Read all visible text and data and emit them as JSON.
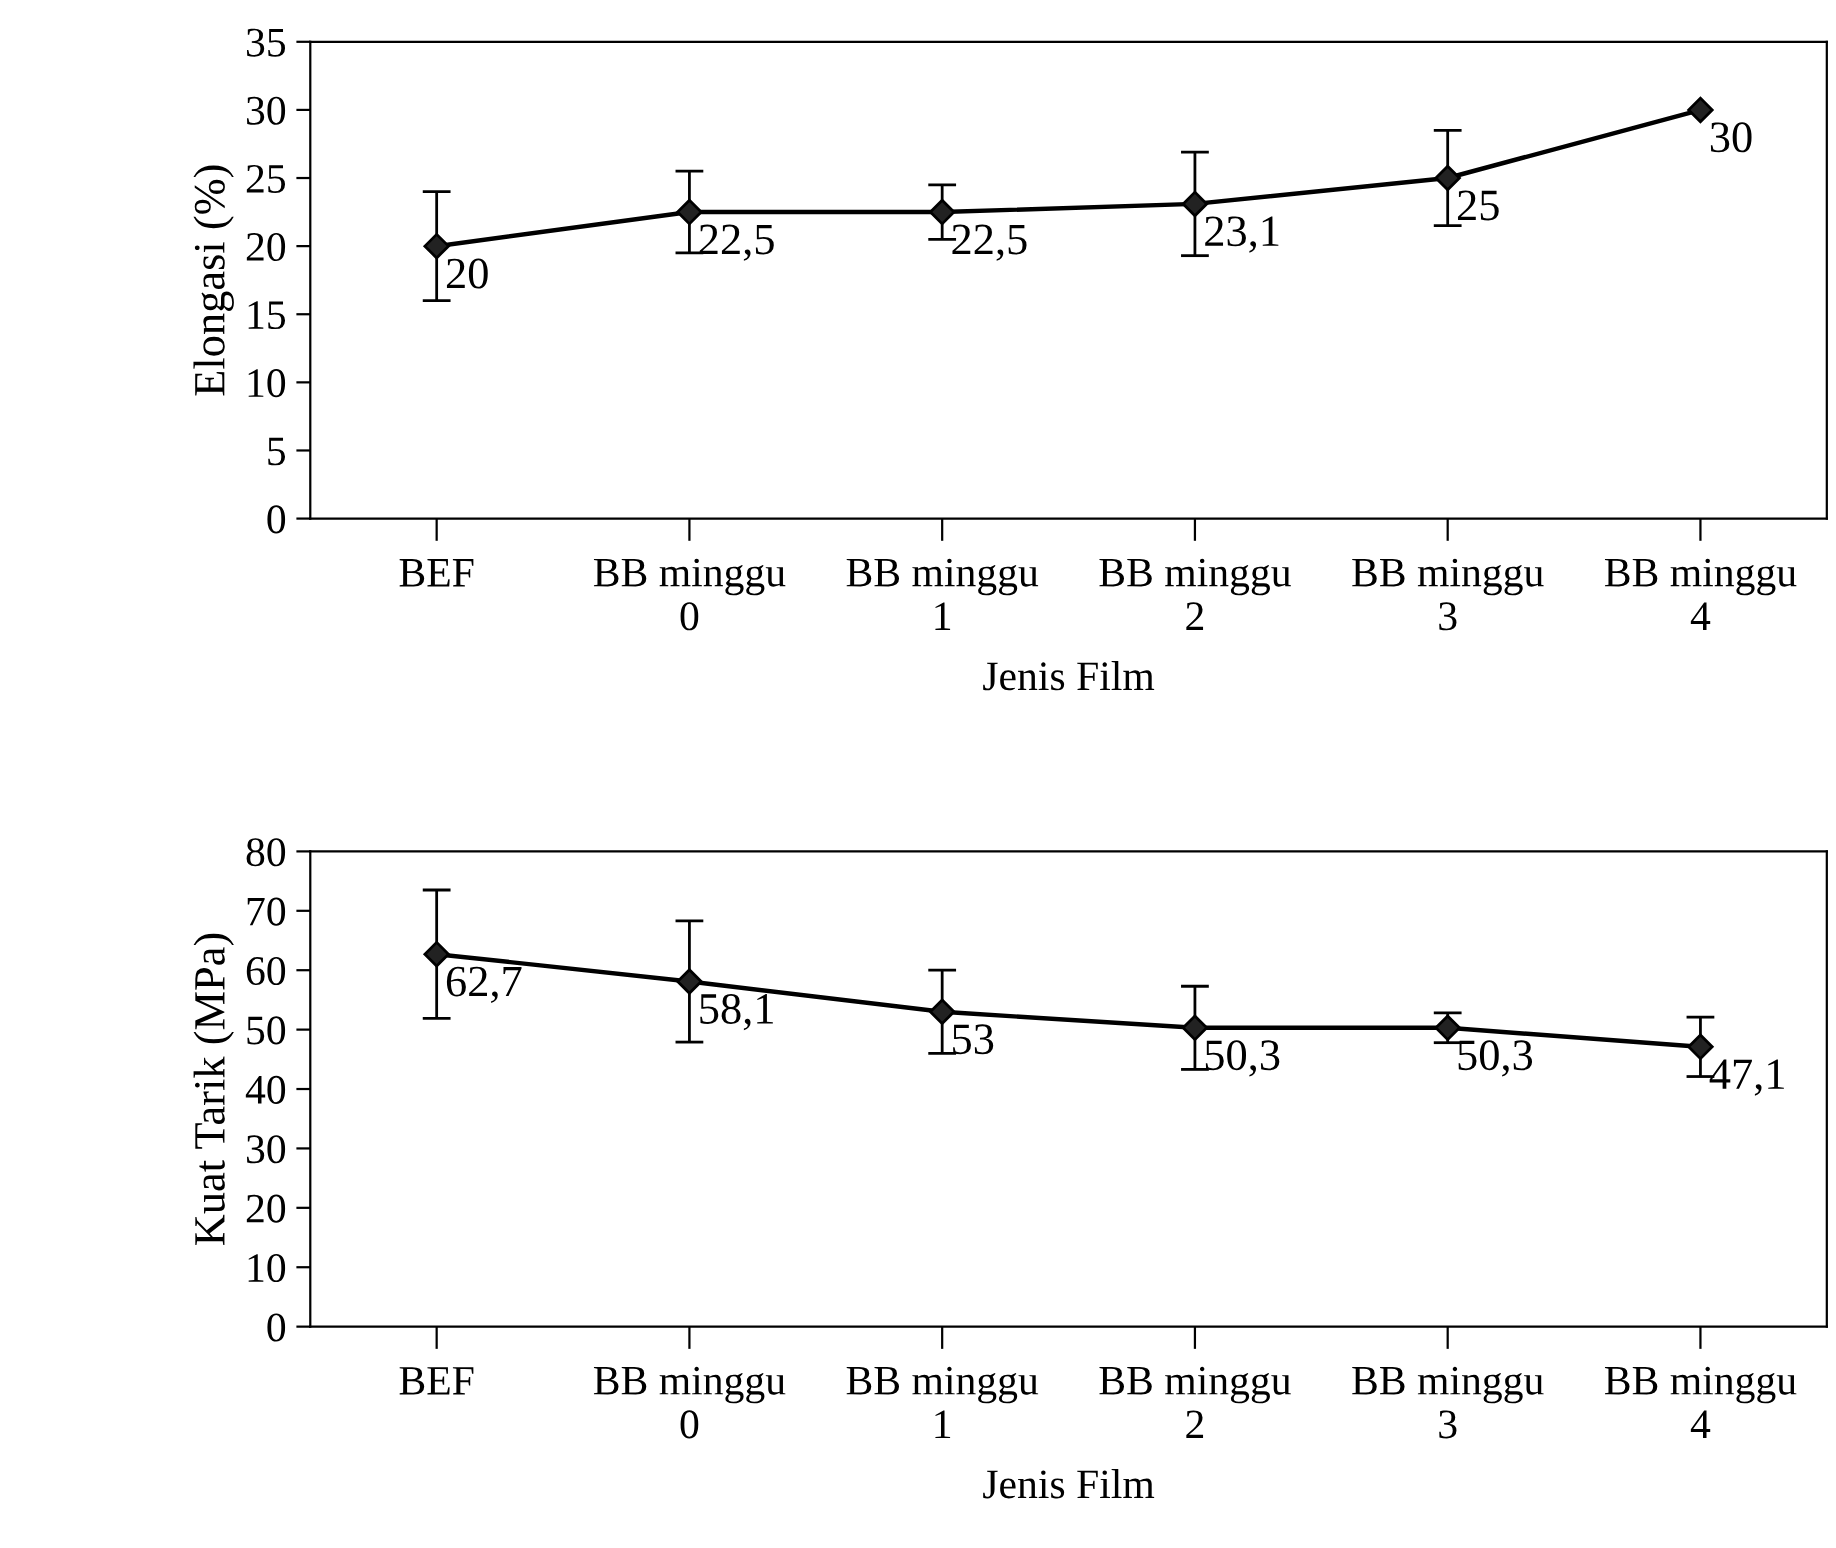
{
  "chart_data": [
    {
      "type": "line",
      "xlabel": "Jenis Film",
      "ylabel": "Elongasi (%)",
      "categories": [
        "BEF",
        "BB minggu\n0",
        "BB minggu\n1",
        "BB minggu\n2",
        "BB minggu\n3",
        "BB minggu\n4"
      ],
      "series": [
        {
          "color": "#000000",
          "values": [
            20,
            22.5,
            22.5,
            23.1,
            25,
            30
          ],
          "errors": [
            4,
            3,
            2,
            3.8,
            3.5,
            null
          ],
          "value_labels": [
            "20",
            "22,5",
            "22,5",
            "23,1",
            "25",
            "30"
          ]
        }
      ],
      "ylim": [
        0,
        35
      ],
      "yticks": [
        0,
        5,
        10,
        15,
        20,
        25,
        30,
        35
      ],
      "marker": "diamond",
      "line_style": "solid",
      "grid": false,
      "legend": false
    },
    {
      "type": "line",
      "xlabel": "Jenis Film",
      "ylabel": "Kuat Tarik (MPa)",
      "categories": [
        "BEF",
        "BB minggu\n0",
        "BB minggu\n1",
        "BB minggu\n2",
        "BB minggu\n3",
        "BB minggu\n4"
      ],
      "series": [
        {
          "color": "#000000",
          "values": [
            62.7,
            58.1,
            53,
            50.3,
            50.3,
            47.1
          ],
          "errors": [
            10.8,
            10.2,
            7,
            7,
            2.5,
            5
          ],
          "value_labels": [
            "62,7",
            "58,1",
            "53",
            "50,3",
            "50,3",
            "47,1"
          ]
        }
      ],
      "ylim": [
        0,
        80
      ],
      "yticks": [
        0,
        10,
        20,
        30,
        40,
        50,
        60,
        70,
        80
      ],
      "marker": "diamond",
      "line_style": "solid",
      "grid": false,
      "legend": false
    }
  ]
}
